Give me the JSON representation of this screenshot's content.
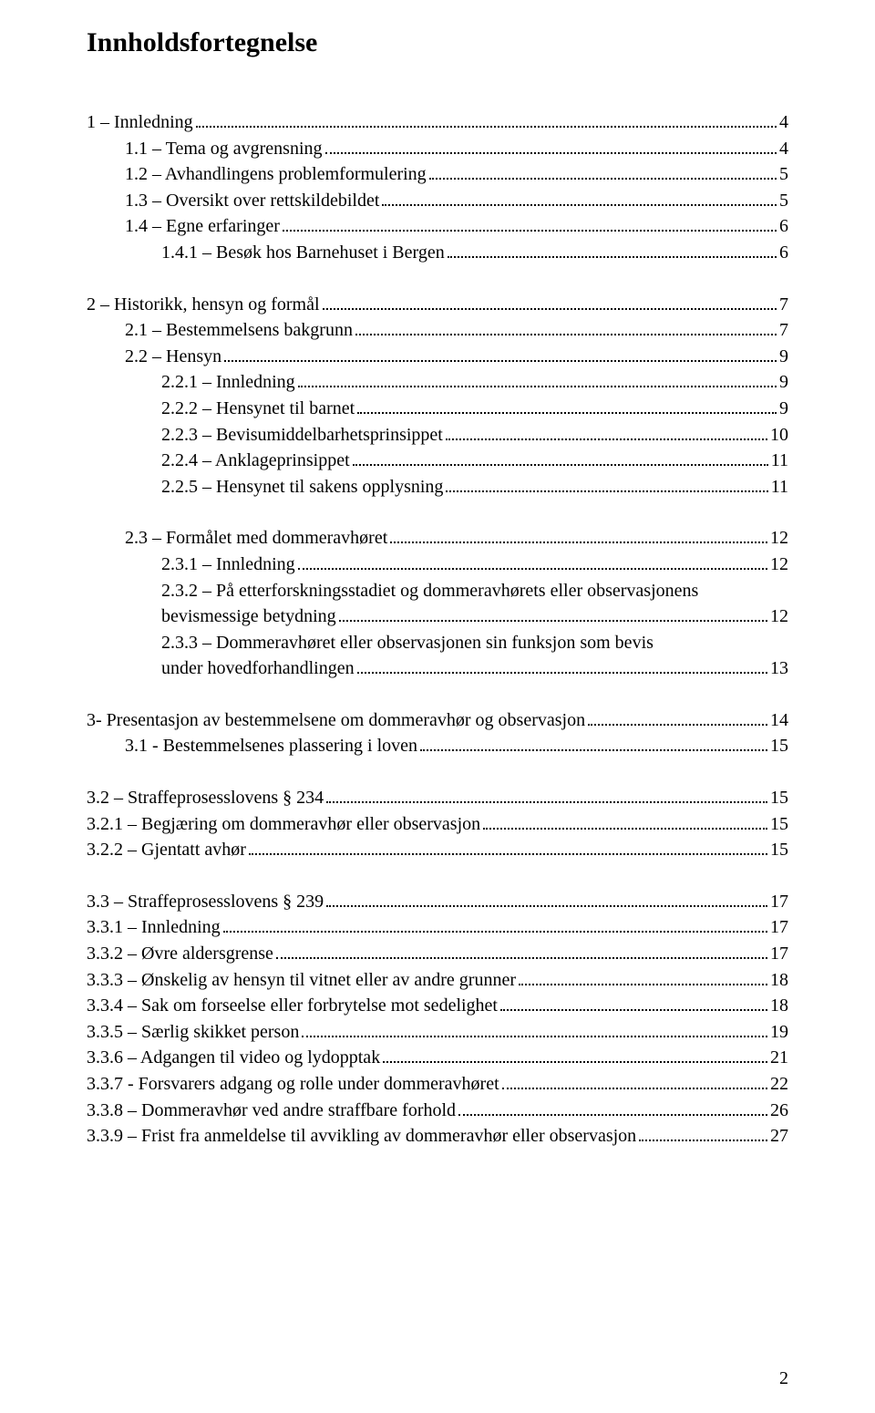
{
  "title": "Innholdsfortegnelse",
  "page_number": "2",
  "entries": [
    {
      "indent": 0,
      "text": "1 – Innledning",
      "page": "4"
    },
    {
      "indent": 1,
      "text": "1.1 – Tema og avgrensning",
      "page": "4"
    },
    {
      "indent": 1,
      "text": "1.2 – Avhandlingens problemformulering",
      "page": "5"
    },
    {
      "indent": 1,
      "text": "1.3 – Oversikt over rettskildebildet",
      "page": "5"
    },
    {
      "indent": 1,
      "text": "1.4 – Egne erfaringer",
      "page": "6"
    },
    {
      "indent": 2,
      "text": "1.4.1 – Besøk hos Barnehuset i Bergen",
      "page": "6"
    },
    {
      "gap": true
    },
    {
      "indent": 0,
      "text": "2 – Historikk, hensyn og formål",
      "page": "7"
    },
    {
      "indent": 1,
      "text": "2.1 – Bestemmelsens bakgrunn",
      "page": "7"
    },
    {
      "indent": 1,
      "text": "2.2 – Hensyn",
      "page": "9"
    },
    {
      "indent": 2,
      "text": "2.2.1 – Innledning",
      "page": "9"
    },
    {
      "indent": 2,
      "text": "2.2.2 – Hensynet til barnet",
      "page": "9"
    },
    {
      "indent": 2,
      "text": "2.2.3 – Bevisumiddelbarhetsprinsippet",
      "page": "10"
    },
    {
      "indent": 2,
      "text": "2.2.4 – Anklageprinsippet",
      "page": "11"
    },
    {
      "indent": 2,
      "text": "2.2.5 – Hensynet til sakens opplysning",
      "page": "11"
    },
    {
      "gap": true
    },
    {
      "indent": 1,
      "text": "2.3 – Formålet med dommeravhøret",
      "page": "12"
    },
    {
      "indent": 2,
      "text": "2.3.1 – Innledning",
      "page": "12"
    },
    {
      "indent": 2,
      "text": "2.3.2 – På etterforskningsstadiet og dommeravhørets eller observasjonens",
      "cont": "bevismessige betydning",
      "page": "12"
    },
    {
      "indent": 2,
      "text": "2.3.3 – Dommeravhøret eller observasjonen sin funksjon som bevis",
      "cont": "under hovedforhandlingen",
      "page": "13"
    },
    {
      "gap": true
    },
    {
      "indent": 0,
      "text": "3- Presentasjon av bestemmelsene om dommeravhør og observasjon",
      "page": "14"
    },
    {
      "indent": 1,
      "text": "3.1 - Bestemmelsenes plassering i loven",
      "page": "15"
    },
    {
      "gap": true
    },
    {
      "indent": 0,
      "text": "3.2 – Straffeprosesslovens § 234",
      "page": "15"
    },
    {
      "indent": 0,
      "text": "3.2.1 – Begjæring om dommeravhør eller observasjon",
      "page": "15"
    },
    {
      "indent": 0,
      "text": "3.2.2 – Gjentatt avhør",
      "page": "15"
    },
    {
      "gap": true
    },
    {
      "indent": 0,
      "text": "3.3 – Straffeprosesslovens § 239",
      "page": "17"
    },
    {
      "indent": 0,
      "text": "3.3.1 – Innledning",
      "page": "17"
    },
    {
      "indent": 0,
      "text": "3.3.2 – Øvre aldersgrense",
      "page": "17"
    },
    {
      "indent": 0,
      "text": "3.3.3 – Ønskelig av hensyn til vitnet eller av andre grunner",
      "page": "18"
    },
    {
      "indent": 0,
      "text": "3.3.4 – Sak om forseelse eller forbrytelse mot sedelighet",
      "page": "18"
    },
    {
      "indent": 0,
      "text": "3.3.5 – Særlig skikket person",
      "page": "19"
    },
    {
      "indent": 0,
      "text": "3.3.6 – Adgangen til video og lydopptak",
      "page": "21"
    },
    {
      "indent": 0,
      "text": "3.3.7 - Forsvarers adgang og rolle under dommeravhøret",
      "page": "22"
    },
    {
      "indent": 0,
      "text": "3.3.8 – Dommeravhør ved andre straffbare forhold",
      "page": "26"
    },
    {
      "indent": 0,
      "text": "3.3.9 – Frist fra anmeldelse til avvikling av dommeravhør eller observasjon",
      "page": "27"
    }
  ]
}
